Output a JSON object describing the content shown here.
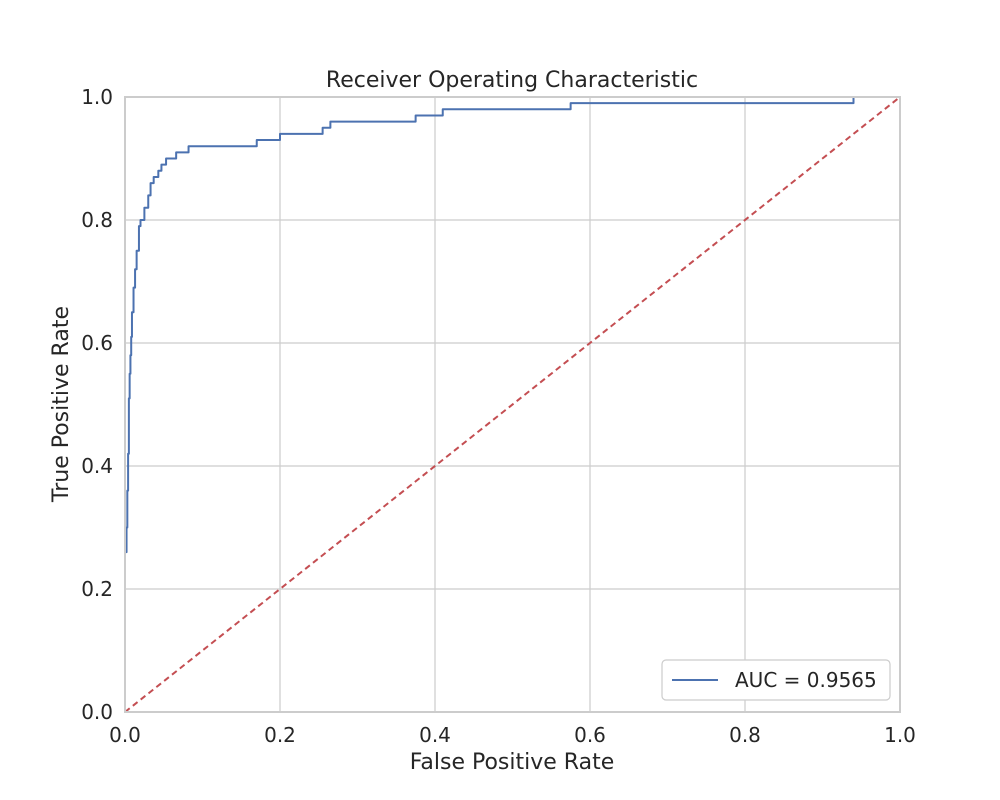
{
  "chart_data": {
    "type": "line",
    "title": "Receiver Operating Characteristic",
    "xlabel": "False Positive Rate",
    "ylabel": "True Positive Rate",
    "xlim": [
      0.0,
      1.0
    ],
    "ylim": [
      0.0,
      1.0
    ],
    "grid": true,
    "legend_position": "bottom-right",
    "x_ticks": [
      "0.0",
      "0.2",
      "0.4",
      "0.6",
      "0.8",
      "1.0"
    ],
    "y_ticks": [
      "0.0",
      "0.2",
      "0.4",
      "0.6",
      "0.8",
      "1.0"
    ],
    "series": [
      {
        "name": "AUC = 0.9565",
        "color": "#4c72b0",
        "step": true,
        "x": [
          0.0,
          0.0,
          0.002,
          0.002,
          0.003,
          0.003,
          0.004,
          0.004,
          0.005,
          0.005,
          0.006,
          0.006,
          0.007,
          0.007,
          0.008,
          0.008,
          0.009,
          0.009,
          0.011,
          0.011,
          0.013,
          0.013,
          0.015,
          0.015,
          0.018,
          0.018,
          0.02,
          0.02,
          0.025,
          0.025,
          0.03,
          0.03,
          0.033,
          0.033,
          0.037,
          0.037,
          0.043,
          0.043,
          0.047,
          0.047,
          0.053,
          0.053,
          0.066,
          0.066,
          0.082,
          0.082,
          0.17,
          0.17,
          0.2,
          0.2,
          0.255,
          0.255,
          0.265,
          0.265,
          0.375,
          0.375,
          0.41,
          0.41,
          0.575,
          0.575,
          0.94,
          0.94,
          1.0
        ],
        "y": [
          0.0,
          0.26,
          0.26,
          0.3,
          0.3,
          0.36,
          0.36,
          0.42,
          0.42,
          0.51,
          0.51,
          0.55,
          0.55,
          0.58,
          0.58,
          0.61,
          0.61,
          0.65,
          0.65,
          0.69,
          0.69,
          0.72,
          0.72,
          0.75,
          0.75,
          0.79,
          0.79,
          0.8,
          0.8,
          0.82,
          0.82,
          0.84,
          0.84,
          0.86,
          0.86,
          0.87,
          0.87,
          0.88,
          0.88,
          0.89,
          0.89,
          0.9,
          0.9,
          0.91,
          0.91,
          0.92,
          0.92,
          0.93,
          0.93,
          0.94,
          0.94,
          0.95,
          0.95,
          0.96,
          0.96,
          0.97,
          0.97,
          0.98,
          0.98,
          0.99,
          0.99,
          1.0,
          1.0
        ]
      },
      {
        "name": "",
        "color": "#c44e52",
        "dashed": true,
        "x": [
          0.0,
          1.0
        ],
        "y": [
          0.0,
          1.0
        ]
      }
    ],
    "legend": [
      {
        "label": "AUC = 0.9565",
        "color": "#4c72b0"
      }
    ]
  }
}
